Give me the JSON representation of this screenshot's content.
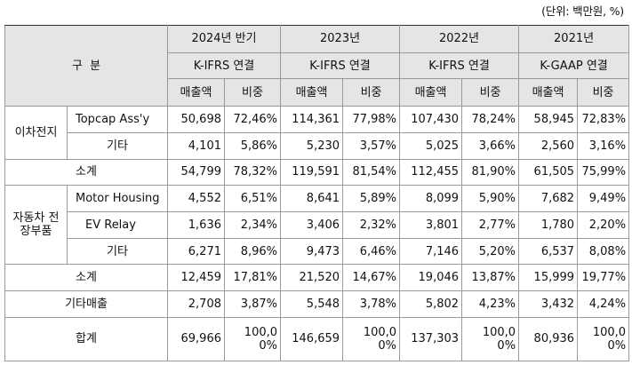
{
  "unit_note": "(단위: 백만원, %)",
  "header": {
    "category": "구  분",
    "periods": [
      {
        "period": "2024년 반기",
        "standard": "K-IFRS 연결",
        "sales": "매출액",
        "ratio": "비중"
      },
      {
        "period": "2023년",
        "standard": "K-IFRS 연결",
        "sales": "매출액",
        "ratio": "비중"
      },
      {
        "period": "2022년",
        "standard": "K-IFRS 연결",
        "sales": "매출액",
        "ratio": "비중"
      },
      {
        "period": "2021년",
        "standard": "K-GAAP 연결",
        "sales": "매출액",
        "ratio": "비중"
      }
    ]
  },
  "groups": {
    "secondary_battery": {
      "label": "이차전지",
      "rows": [
        {
          "item": "Topcap Ass'y",
          "values": [
            "50,698",
            "72,46%",
            "114,361",
            "77,98%",
            "107,430",
            "78,24%",
            "58,945",
            "72,83%"
          ]
        },
        {
          "item": "기타",
          "values": [
            "4,101",
            "5,86%",
            "5,230",
            "3,57%",
            "5,025",
            "3,66%",
            "2,560",
            "3,16%"
          ]
        }
      ],
      "subtotal": {
        "item": "소계",
        "values": [
          "54,799",
          "78,32%",
          "119,591",
          "81,54%",
          "112,455",
          "81,90%",
          "61,505",
          "75,99%"
        ]
      }
    },
    "automotive": {
      "label": "자동차\n전장부품",
      "rows": [
        {
          "item": "Motor Housing",
          "values": [
            "4,552",
            "6,51%",
            "8,641",
            "5,89%",
            "8,099",
            "5,90%",
            "7,682",
            "9,49%"
          ]
        },
        {
          "item": "EV Relay",
          "values": [
            "1,636",
            "2,34%",
            "3,406",
            "2,32%",
            "3,801",
            "2,77%",
            "1,780",
            "2,20%"
          ]
        },
        {
          "item": "기타",
          "values": [
            "6,271",
            "8,96%",
            "9,473",
            "6,46%",
            "7,146",
            "5,20%",
            "6,537",
            "8,08%"
          ]
        }
      ],
      "subtotal": {
        "item": "소계",
        "values": [
          "12,459",
          "17,81%",
          "21,520",
          "14,67%",
          "19,046",
          "13,87%",
          "15,999",
          "19,77%"
        ]
      }
    }
  },
  "other_sales": {
    "item": "기타매출",
    "values": [
      "2,708",
      "3,87%",
      "5,548",
      "3,78%",
      "5,802",
      "4,23%",
      "3,432",
      "4,24%"
    ]
  },
  "total": {
    "item": "합계",
    "values": [
      "69,966",
      "146,659",
      "137,303",
      "80,936"
    ],
    "ratio_line1": "100,0",
    "ratio_line2": "0%"
  }
}
